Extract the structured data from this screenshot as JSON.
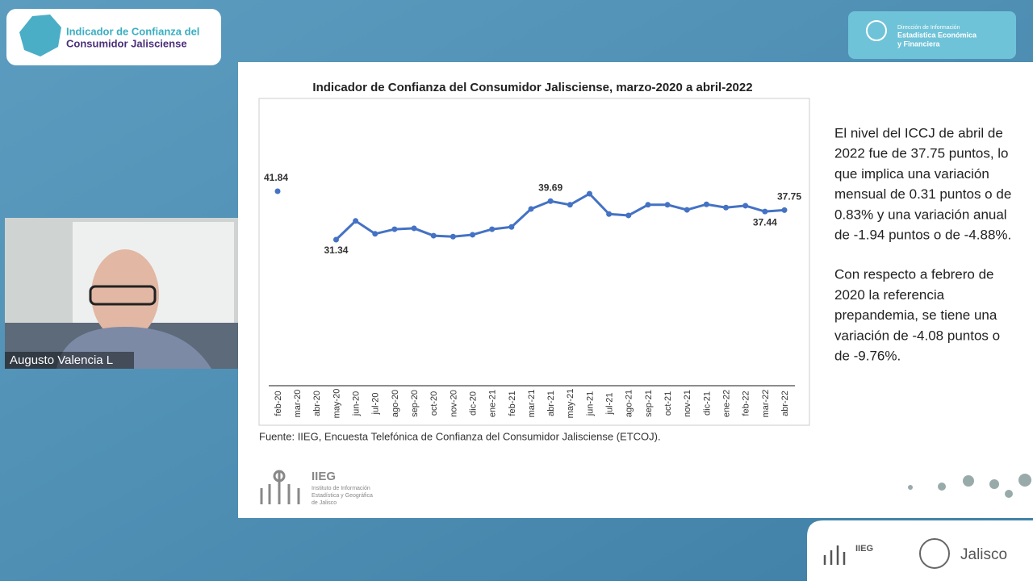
{
  "header": {
    "app_title": [
      "Indicador de Confianza del",
      "Consumidor Jalisciense"
    ],
    "badge": [
      "Dirección de Información",
      "Estadística Económica",
      "y Financiera"
    ]
  },
  "participant": {
    "name": "Augusto Valencia L"
  },
  "chart_data": {
    "type": "line",
    "title": "Indicador de Confianza del Consumidor Jalisciense, marzo-2020 a abril-2022",
    "categories": [
      "feb-20",
      "mar-20",
      "abr-20",
      "may-20",
      "jun-20",
      "jul-20",
      "ago-20",
      "sep-20",
      "oct-20",
      "nov-20",
      "dic-20",
      "ene-21",
      "feb-21",
      "mar-21",
      "abr-21",
      "may-21",
      "jun-21",
      "jul-21",
      "ago-21",
      "sep-21",
      "oct-21",
      "nov-21",
      "dic-21",
      "ene-22",
      "feb-22",
      "mar-22",
      "abr-22"
    ],
    "series": [
      {
        "name": "ICCJ",
        "color": "#4472c4",
        "values": [
          41.84,
          null,
          null,
          31.34,
          35.4,
          32.6,
          33.6,
          33.8,
          32.2,
          32.0,
          32.4,
          33.6,
          34.1,
          38.0,
          39.69,
          38.9,
          41.3,
          36.9,
          36.6,
          38.9,
          38.9,
          37.8,
          39.0,
          38.3,
          38.7,
          37.44,
          37.75
        ],
        "value_labels": [
          "41.84",
          null,
          null,
          "31.34",
          null,
          null,
          null,
          null,
          null,
          null,
          null,
          null,
          null,
          null,
          "39.69",
          null,
          null,
          null,
          null,
          null,
          null,
          null,
          null,
          null,
          null,
          "37.44",
          "37.75"
        ]
      }
    ],
    "source": "Fuente: IIEG, Encuesta Telefónica de Confianza del Consumidor Jalisciense (ETCOJ)."
  },
  "slide": {
    "paragraphs": [
      [
        "El nivel del ICCJ de abril de",
        "2022 fue de 37.75 puntos, lo",
        "que implica una variación",
        "mensual de 0.31 puntos o de",
        "0.83% y una variación anual",
        "de -1.94 puntos o de -4.88%."
      ],
      [
        "Con respecto a febrero de",
        "2020 la referencia",
        "prepandemia, se tiene una",
        "variación de -4.08 puntos o",
        "de  -9.76%."
      ]
    ],
    "logo": {
      "name": "IIEG",
      "lines": [
        "Instituto de Información",
        "Estadística y Geográfica",
        "de Jalisco"
      ]
    }
  },
  "footer": {
    "iieg": "IIEG",
    "jalisco": "Jalisco"
  }
}
